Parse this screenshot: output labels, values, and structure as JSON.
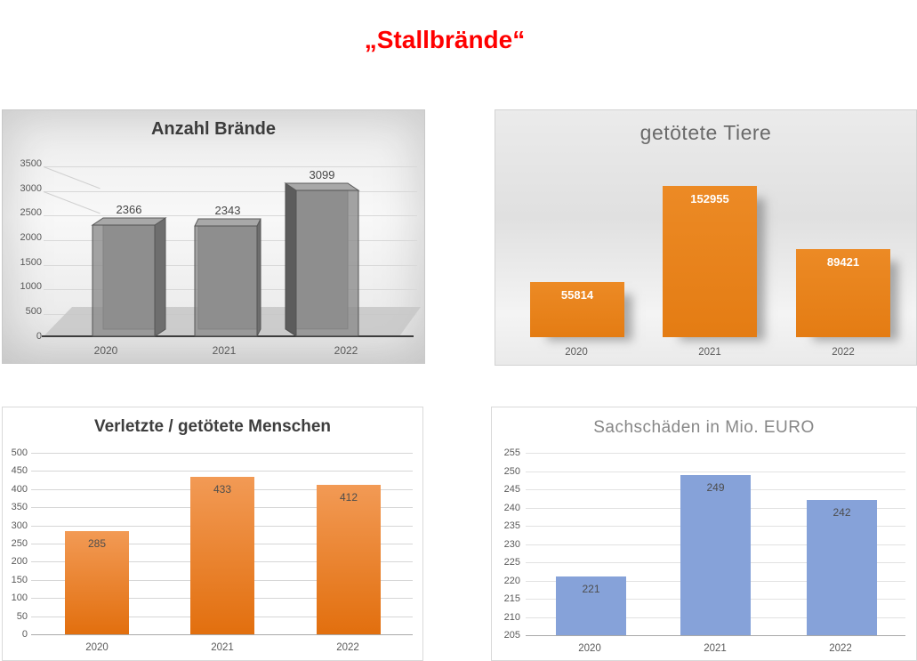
{
  "page": {
    "title": "„Stallbrände“",
    "title_color": "#ff0000",
    "background": "#ffffff"
  },
  "chart_data": [
    {
      "id": "anzahl-braende",
      "type": "bar",
      "variant": "3d-column",
      "title": "Anzahl Brände",
      "categories": [
        "2020",
        "2021",
        "2022"
      ],
      "values": [
        2366,
        2343,
        3099
      ],
      "data_labels": [
        "2366",
        "2343",
        "3099"
      ],
      "y_ticks": [
        "3500",
        "3000",
        "2500",
        "2000",
        "1500",
        "1000",
        "500",
        "0"
      ],
      "ylim": [
        0,
        3500
      ],
      "grid": true,
      "legend": "none",
      "bar_color": "#8a8a8a",
      "label_color": "#474747",
      "background": "gray-gradient-3d"
    },
    {
      "id": "getoetete-tiere",
      "type": "bar",
      "title": "getötete Tiere",
      "categories": [
        "2020",
        "2021",
        "2022"
      ],
      "values": [
        55814,
        152955,
        89421
      ],
      "data_labels": [
        "55814",
        "152955",
        "89421"
      ],
      "y_axis_visible": false,
      "grid": false,
      "legend": "none",
      "bar_color": "#e8811e",
      "label_color": "#ffffff",
      "background": "gray-gradient"
    },
    {
      "id": "verletzte-getoetete-menschen",
      "type": "bar",
      "title": "Verletzte / getötete Menschen",
      "categories": [
        "2020",
        "2021",
        "2022"
      ],
      "values": [
        285,
        433,
        412
      ],
      "data_labels": [
        "285",
        "433",
        "412"
      ],
      "y_ticks": [
        "500",
        "450",
        "400",
        "350",
        "300",
        "250",
        "200",
        "150",
        "100",
        "50",
        "0"
      ],
      "ylim": [
        0,
        500
      ],
      "grid": true,
      "legend": "none",
      "bar_color_top": "#f29a55",
      "bar_color_bottom": "#e26f0e",
      "label_color": "#4d4d4d",
      "background": "#ffffff"
    },
    {
      "id": "sachschaeden-mio-euro",
      "type": "bar",
      "title": "Sachschäden in Mio. EURO",
      "categories": [
        "2020",
        "2021",
        "2022"
      ],
      "values": [
        221,
        249,
        242
      ],
      "data_labels": [
        "221",
        "249",
        "242"
      ],
      "y_ticks": [
        "255",
        "250",
        "245",
        "240",
        "235",
        "230",
        "225",
        "220",
        "215",
        "210",
        "205"
      ],
      "ylim": [
        205,
        255
      ],
      "grid": true,
      "legend": "none",
      "bar_color": "#86a2d9",
      "label_color": "#4d4d4d",
      "background": "#ffffff"
    }
  ]
}
